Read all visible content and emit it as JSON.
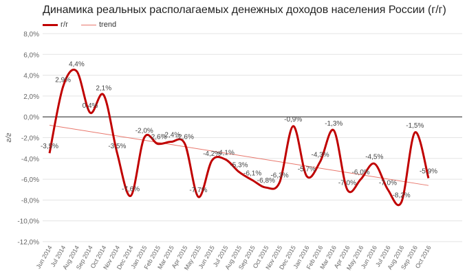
{
  "chart_data": {
    "type": "line",
    "title": "Динамика реальных располагаемых денежных доходов населения России (г/г)",
    "ylabel": "г/г",
    "ylim": [
      -12,
      8
    ],
    "yticks": [
      "8,0%",
      "6,0%",
      "4,0%",
      "2,0%",
      "0,0%",
      "-2,0%",
      "-4,0%",
      "-6,0%",
      "-8,0%",
      "-10,0%",
      "-12,0%"
    ],
    "categories": [
      "Jun 2014",
      "Jul 2014",
      "Aug 2014",
      "Sep 2014",
      "Oct 2014",
      "Nov 2014",
      "Dec 2014",
      "Jan 2015",
      "Feb 2015",
      "Mar 2015",
      "Apr 2015",
      "May 2015",
      "Jun 2015",
      "Jul 2015",
      "Aug 2015",
      "Sep 2015",
      "Oct 2015",
      "Nov 2015",
      "Dec 2015",
      "Jan 2016",
      "Feb 2016",
      "Mar 2016",
      "Apr 2016",
      "May 2016",
      "Jun 2016",
      "Jul 2016",
      "Aug 2016",
      "Sep 2016",
      "Oct 2016"
    ],
    "series": [
      {
        "name": "г/г",
        "color": "#c00000",
        "values": [
          -3.5,
          2.9,
          4.4,
          0.4,
          2.1,
          -3.5,
          -7.6,
          -2.0,
          -2.6,
          -2.4,
          -2.6,
          -7.7,
          -4.2,
          -4.1,
          -5.3,
          -6.1,
          -6.8,
          -6.3,
          -0.9,
          -5.7,
          -4.3,
          -1.3,
          -7.0,
          -6.0,
          -4.5,
          -7.0,
          -8.2,
          -1.5,
          -5.9
        ],
        "labels": [
          "-3,5%",
          "2,9%",
          "4,4%",
          "0,4%",
          "2,1%",
          "-3,5%",
          "-7,6%",
          "-2,0%",
          "-2,6%",
          "-2,4%",
          "-2,6%",
          "-7,7%",
          "-4,2%",
          "-4,1%",
          "-5,3%",
          "-6,1%",
          "-6,8%",
          "-6,3%",
          "-0,9%",
          "-5,7%",
          "-4,3%",
          "-1,3%",
          "-7,0%",
          "-6,0%",
          "-4,5%",
          "-7,0%",
          "-8,2%",
          "-1,5%",
          "-5,9%"
        ]
      },
      {
        "name": "trend",
        "color": "#e8756a",
        "start": -0.8,
        "end": -6.6
      }
    ],
    "grid": true,
    "legend": "top-left"
  }
}
